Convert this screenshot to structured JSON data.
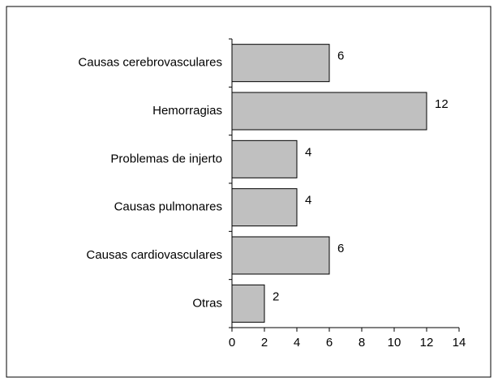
{
  "chart_data": {
    "type": "bar",
    "orientation": "horizontal",
    "categories": [
      "Causas cerebrovasculares",
      "Hemorragias",
      "Problemas de injerto",
      "Causas pulmonares",
      "Causas cardiovasculares",
      "Otras"
    ],
    "values": [
      6,
      12,
      4,
      4,
      6,
      2
    ],
    "color": "#c0c0c0",
    "xlim": [
      0,
      14
    ],
    "xticks": [
      0,
      2,
      4,
      6,
      8,
      10,
      12,
      14
    ],
    "grid": false
  }
}
